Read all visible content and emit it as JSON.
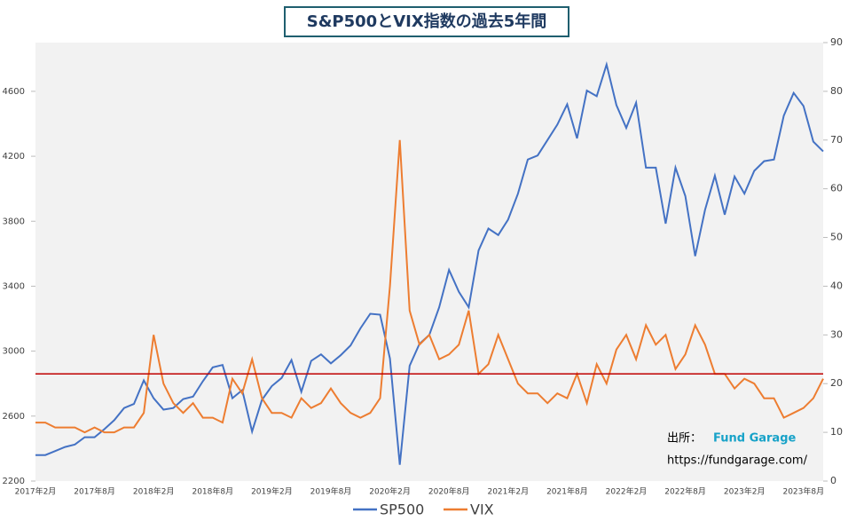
{
  "chart_data": {
    "type": "line",
    "title": "S&P500とVIX指数の過去5年間",
    "categories": [
      "2017年2月",
      null,
      null,
      null,
      null,
      null,
      "2017年8月",
      null,
      null,
      null,
      null,
      null,
      "2018年2月",
      null,
      null,
      null,
      null,
      null,
      "2018年8月",
      null,
      null,
      null,
      null,
      null,
      "2019年2月",
      null,
      null,
      null,
      null,
      null,
      "2019年8月",
      null,
      null,
      null,
      null,
      null,
      "2020年2月",
      null,
      null,
      null,
      null,
      null,
      "2020年8月",
      null,
      null,
      null,
      null,
      null,
      "2021年2月",
      null,
      null,
      null,
      null,
      null,
      "2021年8月",
      null,
      null,
      null,
      null,
      null,
      "2022年2月",
      null,
      null,
      null,
      null,
      null,
      "2022年8月",
      null,
      null,
      null,
      null,
      null,
      "2023年2月",
      null,
      null,
      null,
      null,
      null,
      "2023年8月",
      null,
      null
    ],
    "series": [
      {
        "name": "SP500",
        "color": "#4472c4",
        "axis": "y",
        "values": [
          2360,
          2360,
          2385,
          2410,
          2425,
          2470,
          2470,
          2520,
          2575,
          2650,
          2675,
          2820,
          2710,
          2640,
          2650,
          2705,
          2720,
          2815,
          2900,
          2915,
          2710,
          2760,
          2505,
          2700,
          2785,
          2835,
          2945,
          2750,
          2940,
          2980,
          2925,
          2975,
          3035,
          3140,
          3230,
          3225,
          2955,
          2300,
          2910,
          3045,
          3100,
          3270,
          3500,
          3365,
          3270,
          3620,
          3755,
          3715,
          3810,
          3970,
          4180,
          4205,
          4300,
          4395,
          4520,
          4310,
          4605,
          4570,
          4765,
          4515,
          4375,
          4530,
          4130,
          4130,
          3785,
          4130,
          3955,
          3585,
          3870,
          4080,
          3840,
          4075,
          3970,
          4110,
          4170,
          4180,
          4450,
          4590,
          4510,
          4290,
          4230
        ]
      },
      {
        "name": "VIX",
        "color": "#ed7d31",
        "axis": "y2",
        "values": [
          12,
          12,
          11,
          11,
          11,
          10,
          11,
          10,
          10,
          11,
          11,
          14,
          30,
          20,
          16,
          14,
          16,
          13,
          13,
          12,
          21,
          18,
          25,
          17,
          14,
          14,
          13,
          17,
          15,
          16,
          19,
          16,
          14,
          13,
          14,
          17,
          40,
          70,
          35,
          28,
          30,
          25,
          26,
          28,
          35,
          22,
          24,
          30,
          25,
          20,
          18,
          18,
          16,
          18,
          17,
          22,
          16,
          24,
          20,
          27,
          30,
          25,
          32,
          28,
          30,
          23,
          26,
          32,
          28,
          22,
          22,
          19,
          21,
          20,
          17,
          17,
          13,
          14,
          15,
          17,
          21
        ]
      }
    ],
    "ylim": [
      2200,
      4900
    ],
    "yticks": [
      2200,
      2600,
      3000,
      3400,
      3800,
      4200,
      4600
    ],
    "y2lim": [
      0,
      90
    ],
    "y2ticks": [
      0,
      10,
      20,
      30,
      40,
      50,
      60,
      70,
      80,
      90
    ],
    "reference_line": {
      "value": 22,
      "axis": "y2",
      "color": "#c00000"
    },
    "source_label": "出所：",
    "source_name": "Fund Garage",
    "source_url": "https://fundgarage.com/",
    "legend": "bottom"
  }
}
